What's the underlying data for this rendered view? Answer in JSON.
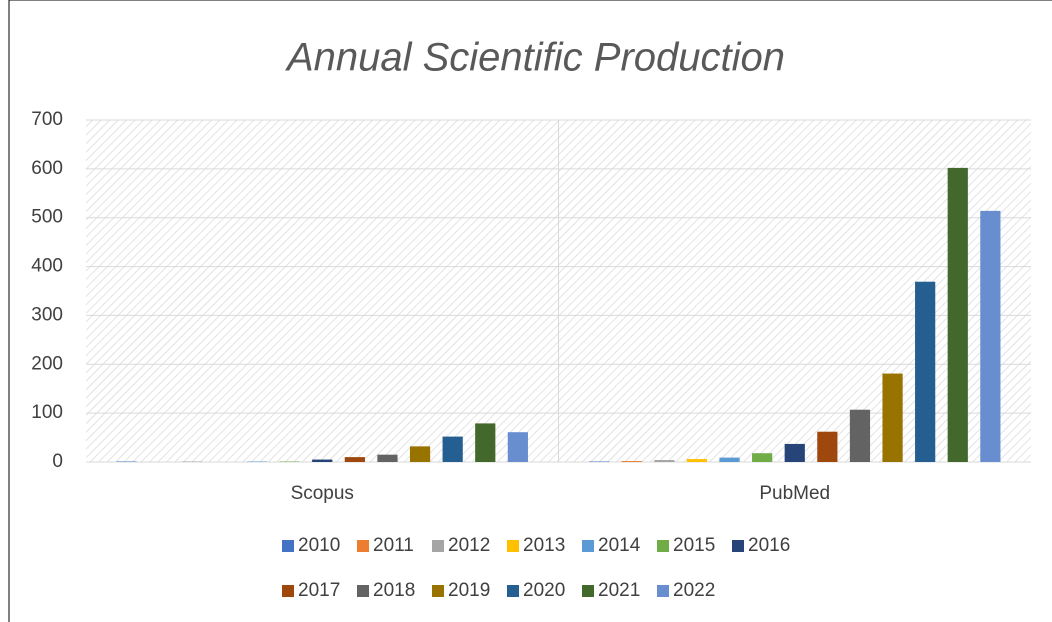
{
  "chart_data": {
    "type": "bar",
    "title": "Annual Scientific Production",
    "categories": [
      "Scopus",
      "PubMed"
    ],
    "series": [
      {
        "name": "2010",
        "color": "#4472c4",
        "values": [
          1,
          1
        ]
      },
      {
        "name": "2011",
        "color": "#ed7d31",
        "values": [
          0,
          2
        ]
      },
      {
        "name": "2012",
        "color": "#a5a5a5",
        "values": [
          1,
          4
        ]
      },
      {
        "name": "2013",
        "color": "#ffc000",
        "values": [
          0,
          6
        ]
      },
      {
        "name": "2014",
        "color": "#5b9bd5",
        "values": [
          1,
          9
        ]
      },
      {
        "name": "2015",
        "color": "#70ad47",
        "values": [
          1,
          18
        ]
      },
      {
        "name": "2016",
        "color": "#264478",
        "values": [
          5,
          37
        ]
      },
      {
        "name": "2017",
        "color": "#9e480e",
        "values": [
          10,
          62
        ]
      },
      {
        "name": "2018",
        "color": "#636363",
        "values": [
          15,
          107
        ]
      },
      {
        "name": "2019",
        "color": "#997300",
        "values": [
          32,
          181
        ]
      },
      {
        "name": "2020",
        "color": "#255e91",
        "values": [
          52,
          369
        ]
      },
      {
        "name": "2021",
        "color": "#43682b",
        "values": [
          79,
          602
        ]
      },
      {
        "name": "2022",
        "color": "#698ed0",
        "values": [
          61,
          514
        ]
      }
    ],
    "ylim": [
      0,
      700
    ],
    "yticks": [
      0,
      100,
      200,
      300,
      400,
      500,
      600,
      700
    ],
    "grid": true,
    "legend": "bottom"
  }
}
